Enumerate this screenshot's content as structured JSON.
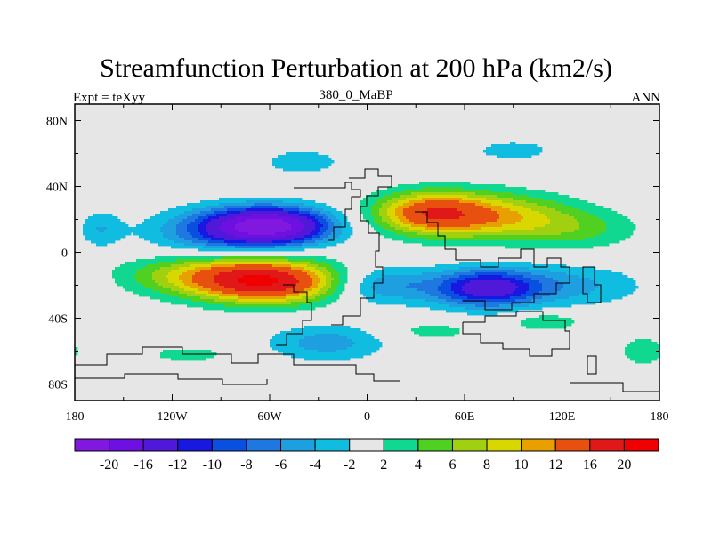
{
  "chart_data": {
    "type": "heatmap",
    "title": "Streamfunction Perturbation at 200 hPa (km2/s)",
    "left_string": "Expt = teXyy",
    "center_string": "380_0_MaBP",
    "right_string": "ANN",
    "x_tick_labels": [
      "180",
      "120W",
      "60W",
      "0",
      "60E",
      "120E",
      "180"
    ],
    "x_tick_values": [
      -180,
      -120,
      -60,
      0,
      60,
      120,
      180
    ],
    "y_tick_labels": [
      "80N",
      "40N",
      "0",
      "40S",
      "80S"
    ],
    "y_tick_values": [
      80,
      40,
      0,
      -40,
      -80
    ],
    "xlim": [
      -180,
      180
    ],
    "ylim": [
      -90,
      90
    ],
    "missing_color": "#e6e6e6",
    "colorbar": {
      "labels": [
        "-20",
        "-16",
        "-12",
        "-10",
        "-8",
        "-6",
        "-4",
        "-2",
        "2",
        "4",
        "6",
        "8",
        "10",
        "12",
        "16",
        "20"
      ],
      "levels": [
        -20,
        -16,
        -12,
        -10,
        -8,
        -6,
        -4,
        -2,
        2,
        4,
        6,
        8,
        10,
        12,
        16,
        20
      ],
      "colors": [
        "#8018e0",
        "#6e10e2",
        "#5018d8",
        "#1818e0",
        "#0a50e0",
        "#1e78e0",
        "#1ea0e0",
        "#10bce0",
        "#e6e6e6",
        "#10d890",
        "#50d020",
        "#a0d010",
        "#d8d800",
        "#e8a000",
        "#e85010",
        "#e01818",
        "#f00000"
      ]
    },
    "field_features": [
      {
        "lon": -60,
        "lat": 16,
        "value": -21,
        "sx": 26,
        "sy": 8
      },
      {
        "lon": -165,
        "lat": 14,
        "value": -4,
        "sx": 10,
        "sy": 8
      },
      {
        "lon": -95,
        "lat": 12,
        "value": -6,
        "sx": 30,
        "sy": 10
      },
      {
        "lon": -60,
        "lat": -18,
        "value": 17,
        "sx": 30,
        "sy": 9
      },
      {
        "lon": -100,
        "lat": -14,
        "value": 8,
        "sx": 36,
        "sy": 9
      },
      {
        "lon": 38,
        "lat": 24,
        "value": 13,
        "sx": 24,
        "sy": 9
      },
      {
        "lon": 80,
        "lat": 22,
        "value": 9,
        "sx": 32,
        "sy": 10
      },
      {
        "lon": 130,
        "lat": 14,
        "value": 4,
        "sx": 28,
        "sy": 9
      },
      {
        "lon": 72,
        "lat": -22,
        "value": -12,
        "sx": 22,
        "sy": 8
      },
      {
        "lon": 115,
        "lat": -20,
        "value": -5,
        "sx": 40,
        "sy": 9
      },
      {
        "lon": 10,
        "lat": -20,
        "value": -6,
        "sx": 22,
        "sy": 8
      },
      {
        "lon": -40,
        "lat": 55,
        "value": -4,
        "sx": 16,
        "sy": 5
      },
      {
        "lon": -25,
        "lat": -55,
        "value": -5,
        "sx": 26,
        "sy": 8
      },
      {
        "lon": 110,
        "lat": -42,
        "value": 4,
        "sx": 16,
        "sy": 4
      },
      {
        "lon": 170,
        "lat": -60,
        "value": 4,
        "sx": 10,
        "sy": 6
      },
      {
        "lon": 90,
        "lat": 62,
        "value": -3,
        "sx": 20,
        "sy": 5
      },
      {
        "lon": 40,
        "lat": -48,
        "value": 3,
        "sx": 20,
        "sy": 4
      },
      {
        "lon": -110,
        "lat": -62,
        "value": 3,
        "sx": 20,
        "sy": 4
      }
    ],
    "grid": false,
    "legend_placement": "bottom"
  }
}
